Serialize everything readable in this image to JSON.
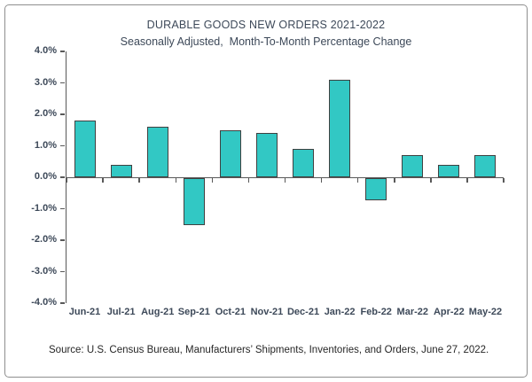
{
  "chart_data": {
    "type": "bar",
    "title": "DURABLE GOODS NEW ORDERS 2021-2022",
    "subtitle": "Seasonally Adjusted,  Month-To-Month Percentage Change",
    "categories": [
      "Jun-21",
      "Jul-21",
      "Aug-21",
      "Sep-21",
      "Oct-21",
      "Nov-21",
      "Dec-21",
      "Jan-22",
      "Feb-22",
      "Mar-22",
      "Apr-22",
      "May-22"
    ],
    "values": [
      1.8,
      0.4,
      1.6,
      -1.5,
      1.5,
      1.4,
      0.9,
      3.1,
      -0.7,
      0.7,
      0.4,
      0.7
    ],
    "ylabel": "",
    "xlabel": "",
    "ylim": [
      -4.0,
      4.0
    ],
    "y_tick_step": 1.0,
    "y_tick_labels": [
      "4.0%",
      "3.0%",
      "2.0%",
      "1.0%",
      "0.0%",
      "-1.0%",
      "-2.0%",
      "-3.0%",
      "-4.0%"
    ],
    "grid": false,
    "legend": false,
    "bar_fill": "#32c8c4",
    "bar_border": "#404040",
    "axis_color": "#595959",
    "text_color": "#3d4959",
    "source_note": "Source: U.S. Census Bureau, Manufacturers’ Shipments, Inventories, and Orders, June 27, 2022."
  }
}
